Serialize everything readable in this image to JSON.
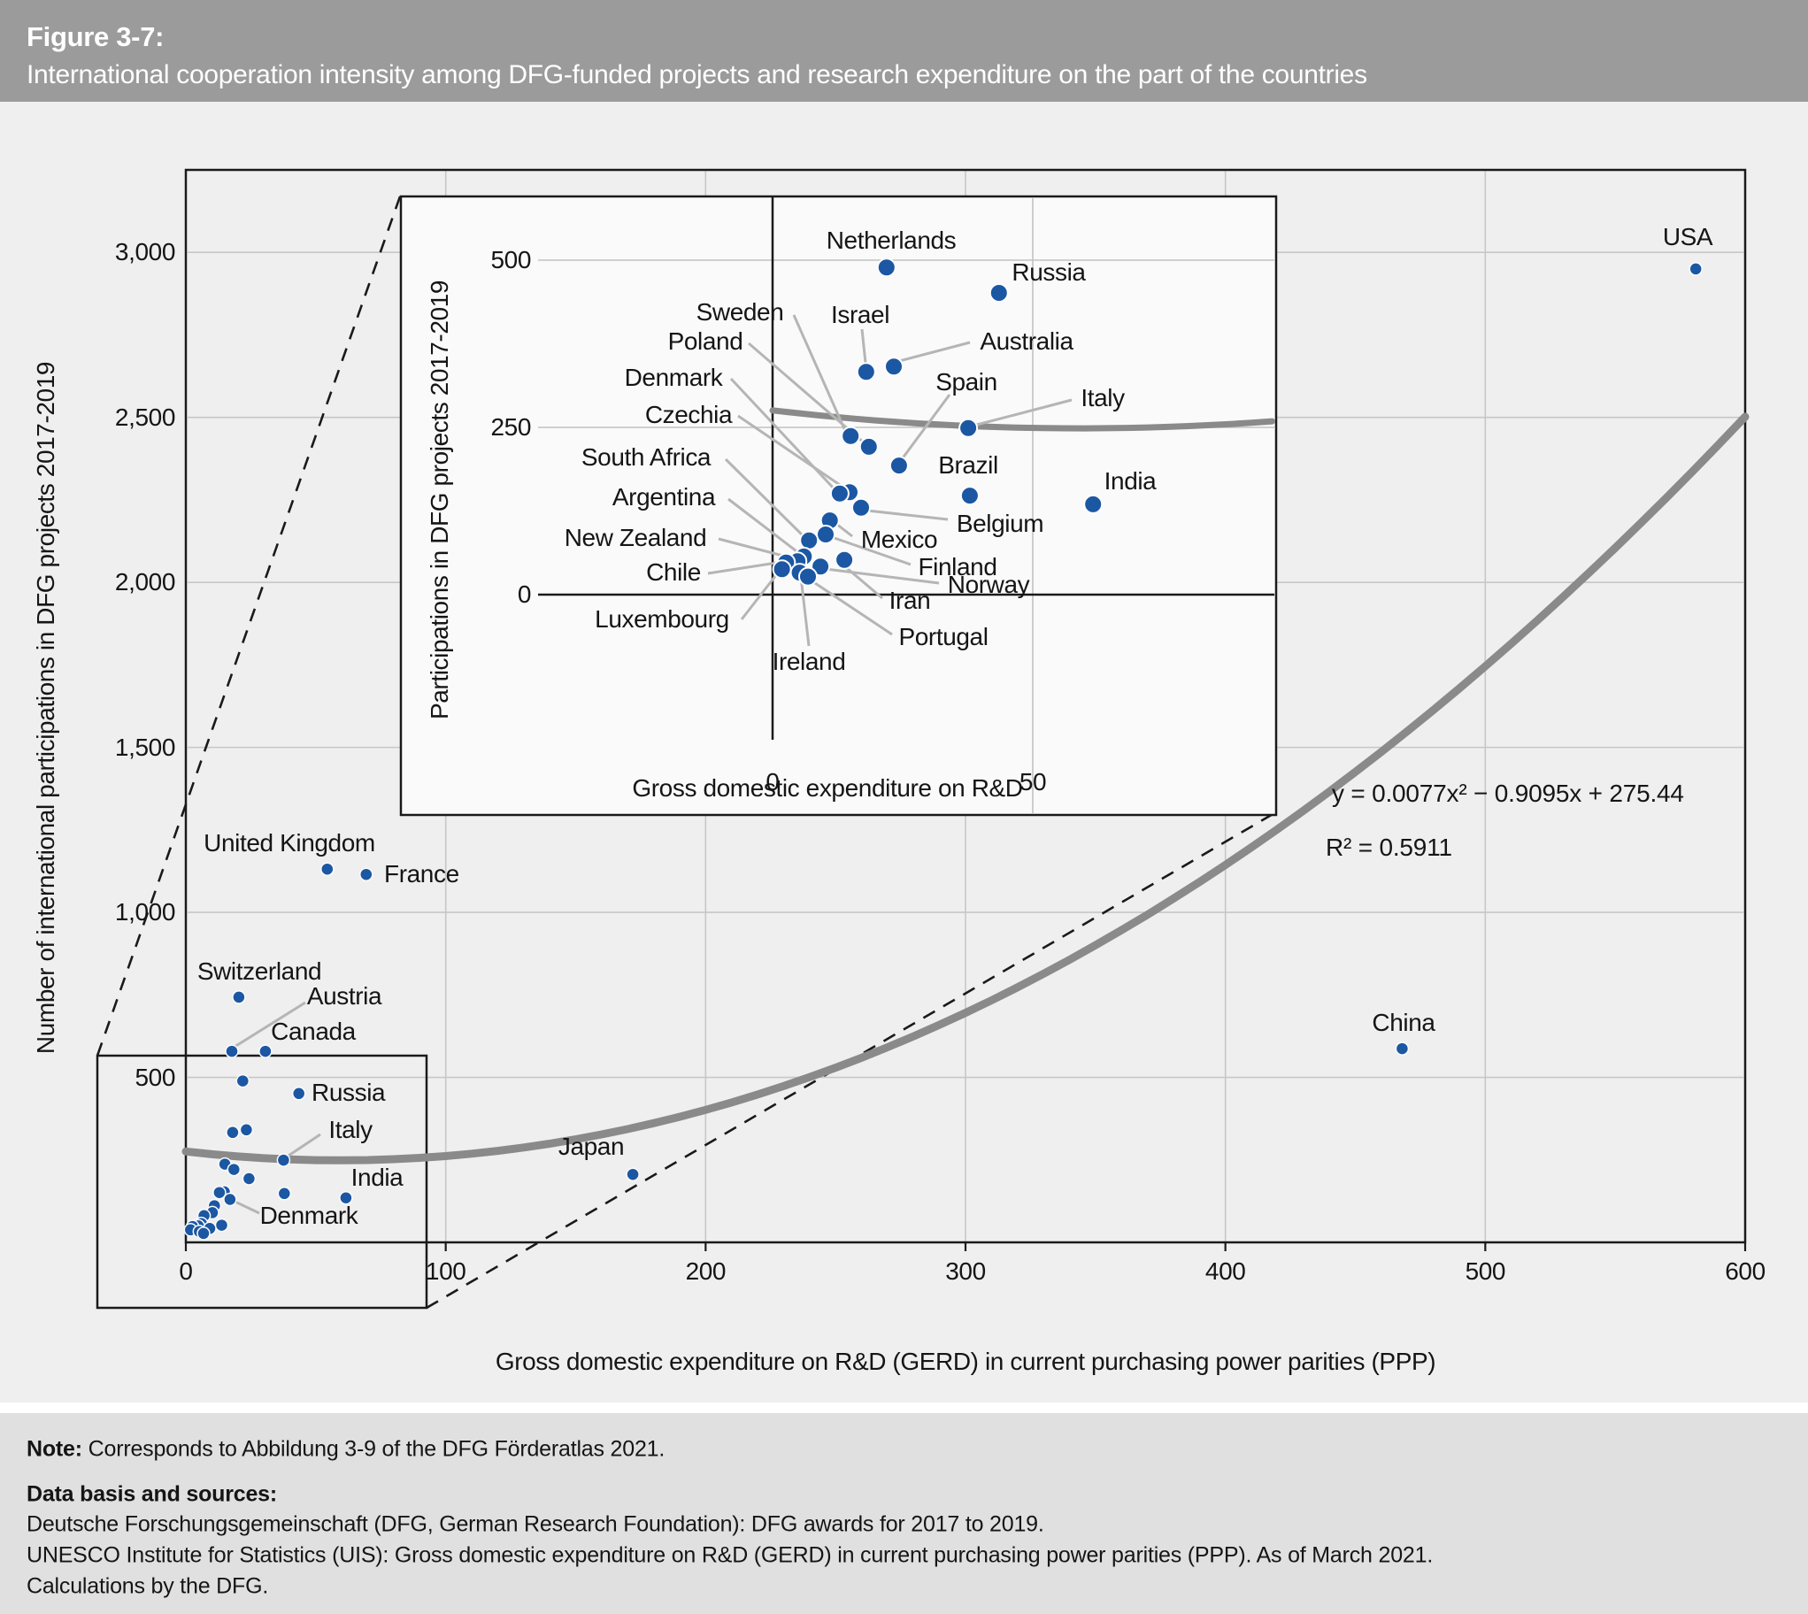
{
  "header": {
    "figure_label": "Figure 3-7:",
    "title": "International cooperation intensity among DFG-funded projects and research expenditure on the part of the countries"
  },
  "chart_data": {
    "type": "scatter",
    "main": {
      "xlabel": "Gross domestic expenditure on R&D (GERD) in current purchasing power parities (PPP)",
      "ylabel": "Number of international participations in DFG projects 2017-2019",
      "xlim": [
        0,
        600
      ],
      "ylim": [
        0,
        3250
      ],
      "xticks": [
        "0",
        "100",
        "200",
        "300",
        "400",
        "500",
        "600"
      ],
      "yticks": [
        "500",
        "1,000",
        "1,500",
        "2,000",
        "2,500",
        "3,000"
      ],
      "grid": true,
      "trendline": {
        "equation": "y = 0.0077x² − 0.9095x + 275.44",
        "r_squared": "R² = 0.5911",
        "a": 0.0077,
        "b": -0.9095,
        "c": 275.44
      }
    },
    "inset": {
      "xlabel": "Gross domestic expenditure on R&D",
      "ylabel": "Participations in DFG projects 2017-2019",
      "xlim": [
        -71,
        97
      ],
      "ylim": [
        -330,
        595
      ],
      "xticks": [
        "0",
        "50"
      ],
      "yticks": [
        "0",
        "250",
        "500"
      ]
    },
    "points": [
      {
        "name": "USA",
        "gerd": 581.0,
        "participations": 2950,
        "inset": false
      },
      {
        "name": "China",
        "gerd": 468.0,
        "participations": 587,
        "inset": false
      },
      {
        "name": "Japan",
        "gerd": 172.0,
        "participations": 206,
        "inset": false
      },
      {
        "name": "United Kingdom",
        "gerd": 54.4,
        "participations": 1131,
        "inset": false
      },
      {
        "name": "France",
        "gerd": 69.4,
        "participations": 1115,
        "inset": false
      },
      {
        "name": "Switzerland",
        "gerd": 20.4,
        "participations": 743,
        "inset": false
      },
      {
        "name": "Austria",
        "gerd": 17.7,
        "participations": 579,
        "inset": false
      },
      {
        "name": "Canada",
        "gerd": 30.6,
        "participations": 579,
        "inset": false
      },
      {
        "name": "Russia",
        "gerd": 43.5,
        "participations": 451,
        "inset": true
      },
      {
        "name": "Netherlands",
        "gerd": 21.9,
        "participations": 489,
        "inset": true
      },
      {
        "name": "Australia",
        "gerd": 23.3,
        "participations": 341,
        "inset": true
      },
      {
        "name": "Israel",
        "gerd": 18.0,
        "participations": 333,
        "inset": true
      },
      {
        "name": "Italy",
        "gerd": 37.6,
        "participations": 249,
        "inset": true
      },
      {
        "name": "Sweden",
        "gerd": 15.0,
        "participations": 237,
        "inset": true
      },
      {
        "name": "Poland",
        "gerd": 18.5,
        "participations": 221,
        "inset": true
      },
      {
        "name": "Spain",
        "gerd": 24.3,
        "participations": 193,
        "inset": true
      },
      {
        "name": "Czechia",
        "gerd": 14.8,
        "participations": 153,
        "inset": true
      },
      {
        "name": "Denmark",
        "gerd": 12.9,
        "participations": 151,
        "inset": true
      },
      {
        "name": "Brazil",
        "gerd": 37.9,
        "participations": 148,
        "inset": true
      },
      {
        "name": "India",
        "gerd": 61.6,
        "participations": 135,
        "inset": true
      },
      {
        "name": "Belgium",
        "gerd": 17.0,
        "participations": 130,
        "inset": true
      },
      {
        "name": "Mexico",
        "gerd": 11.0,
        "participations": 111,
        "inset": true
      },
      {
        "name": "Finland",
        "gerd": 10.2,
        "participations": 90,
        "inset": true
      },
      {
        "name": "South Africa",
        "gerd": 7.0,
        "participations": 81,
        "inset": true
      },
      {
        "name": "Argentina",
        "gerd": 6.0,
        "participations": 57,
        "inset": true
      },
      {
        "name": "Iran",
        "gerd": 13.8,
        "participations": 52,
        "inset": true
      },
      {
        "name": "New Zealand",
        "gerd": 4.8,
        "participations": 50,
        "inset": true
      },
      {
        "name": "Chile",
        "gerd": 2.6,
        "participations": 48,
        "inset": true
      },
      {
        "name": "Norway",
        "gerd": 9.2,
        "participations": 42,
        "inset": true
      },
      {
        "name": "Luxembourg",
        "gerd": 1.8,
        "participations": 38,
        "inset": true
      },
      {
        "name": "Ireland",
        "gerd": 5.2,
        "participations": 33,
        "inset": true
      },
      {
        "name": "Portugal",
        "gerd": 6.8,
        "participations": 27,
        "inset": true
      }
    ],
    "colors": {
      "point": "#1b57a3",
      "trend": "#8a8a8a",
      "grid": "#c7c7c7",
      "leader": "#b5b5b5",
      "frame": "#1a1a1a",
      "header_bg": "#9b9b9b",
      "chart_bg": "#efeff0",
      "inset_bg": "#fafafa",
      "footer_bg": "#e0e0e1"
    }
  },
  "footer": {
    "note_label": "Note:",
    "note_text": " Corresponds to Abbildung 3-9 of the DFG Förderatlas 2021.",
    "sources_heading": "Data basis and sources:",
    "source1": "Deutsche Forschungsgemeinschaft (DFG, German Research Foundation): DFG awards for 2017 to 2019.",
    "source2": "UNESCO Institute for Statistics (UIS): Gross domestic expenditure on R&D (GERD) in current purchasing power parities (PPP). As of March 2021.",
    "source3": "Calculations by the DFG."
  }
}
